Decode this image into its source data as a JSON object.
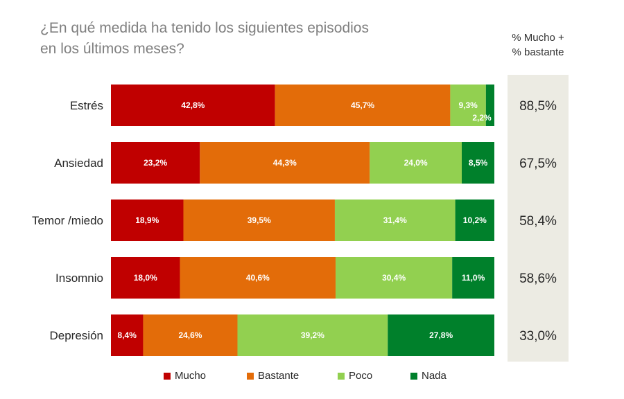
{
  "title_lines": [
    "¿En qué medida ha tenido los siguientes episodios",
    "en los últimos meses?"
  ],
  "side_header_lines": [
    "% Mucho +",
    "% bastante"
  ],
  "colors": {
    "Mucho": "#c00000",
    "Bastante": "#e36c09",
    "Poco": "#92d050",
    "Nada": "#00802b"
  },
  "chart_data": {
    "type": "bar",
    "orientation": "horizontal",
    "stacked": true,
    "categories": [
      "Estrés",
      "Ansiedad",
      "Temor /miedo",
      "Insomnio",
      "Depresión"
    ],
    "series": [
      {
        "name": "Mucho",
        "values": [
          42.8,
          23.2,
          18.9,
          18.0,
          8.4
        ],
        "labels": [
          "42,8%",
          "23,2%",
          "18,9%",
          "18,0%",
          "8,4%"
        ]
      },
      {
        "name": "Bastante",
        "values": [
          45.7,
          44.3,
          39.5,
          40.6,
          24.6
        ],
        "labels": [
          "45,7%",
          "44,3%",
          "39,5%",
          "40,6%",
          "24,6%"
        ]
      },
      {
        "name": "Poco",
        "values": [
          9.3,
          24.0,
          31.4,
          30.4,
          39.2
        ],
        "labels": [
          "9,3%",
          "24,0%",
          "31,4%",
          "30,4%",
          "39,2%"
        ]
      },
      {
        "name": "Nada",
        "values": [
          2.2,
          8.5,
          10.2,
          11.0,
          27.8
        ],
        "labels": [
          "2,2%",
          "8,5%",
          "10,2%",
          "11,0%",
          "27,8%"
        ]
      }
    ],
    "totals": {
      "values": [
        88.5,
        67.5,
        58.4,
        58.6,
        33.0
      ],
      "labels": [
        "88,5%",
        "67,5%",
        "58,4%",
        "58,6%",
        "33,0%"
      ]
    },
    "xlim": [
      0,
      100
    ],
    "grid": false,
    "legend_position": "bottom"
  }
}
